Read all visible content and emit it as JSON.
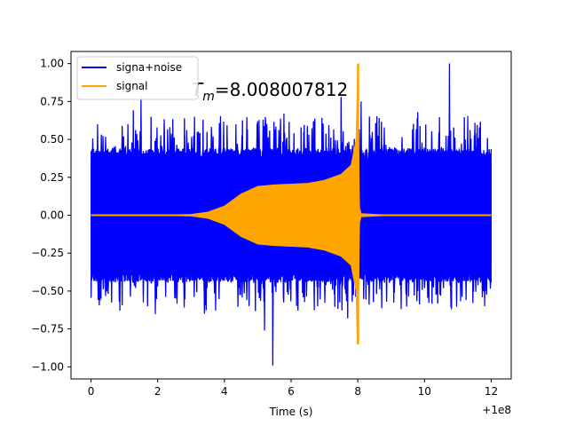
{
  "chart_data": {
    "type": "line",
    "title": "",
    "xlabel": "Time (s)",
    "ylabel": "",
    "x_offset_label": "+1e8",
    "xlim": [
      -0.6,
      12.6
    ],
    "ylim": [
      -1.08,
      1.08
    ],
    "xticks": [
      0,
      2,
      4,
      6,
      8,
      10,
      12
    ],
    "xtick_labels": [
      "0",
      "2",
      "4",
      "6",
      "8",
      "10",
      "12"
    ],
    "yticks": [
      -1.0,
      -0.75,
      -0.5,
      -0.25,
      0.0,
      0.25,
      0.5,
      0.75,
      1.0
    ],
    "ytick_labels": [
      "−1.00",
      "−0.75",
      "−0.50",
      "−0.25",
      "0.00",
      "0.25",
      "0.50",
      "0.75",
      "1.00"
    ],
    "grid": false,
    "legend_position": "top-left",
    "annotation": {
      "symbol": "T",
      "subscript": "m",
      "value_text": "=8.008007812",
      "x": 5.4,
      "y": 0.84
    },
    "series": [
      {
        "name": "signa+noise",
        "color": "#0000ff",
        "kind": "noise_band",
        "x_range": [
          0,
          12
        ],
        "typical_amplitude": 0.43,
        "peak_max": 1.0,
        "peak_min": -0.99,
        "peak_max_x": 10.75,
        "peak_min_x": 5.45
      },
      {
        "name": "signal",
        "color": "#ffa500",
        "kind": "chirp_envelope",
        "x": [
          0,
          2,
          3,
          3.5,
          4,
          4.5,
          5,
          5.5,
          6,
          6.5,
          7,
          7.5,
          7.8,
          7.95,
          8.0,
          8.01,
          8.05,
          8.1,
          9,
          10,
          12
        ],
        "envelope": [
          0.0,
          0.0,
          0.005,
          0.02,
          0.06,
          0.14,
          0.19,
          0.2,
          0.205,
          0.21,
          0.23,
          0.27,
          0.33,
          0.5,
          1.0,
          0.85,
          0.05,
          0.01,
          0.0,
          0.0,
          0.0
        ],
        "max_value": 1.0,
        "min_value": -0.85,
        "peak_x": 8.008007812
      }
    ]
  }
}
